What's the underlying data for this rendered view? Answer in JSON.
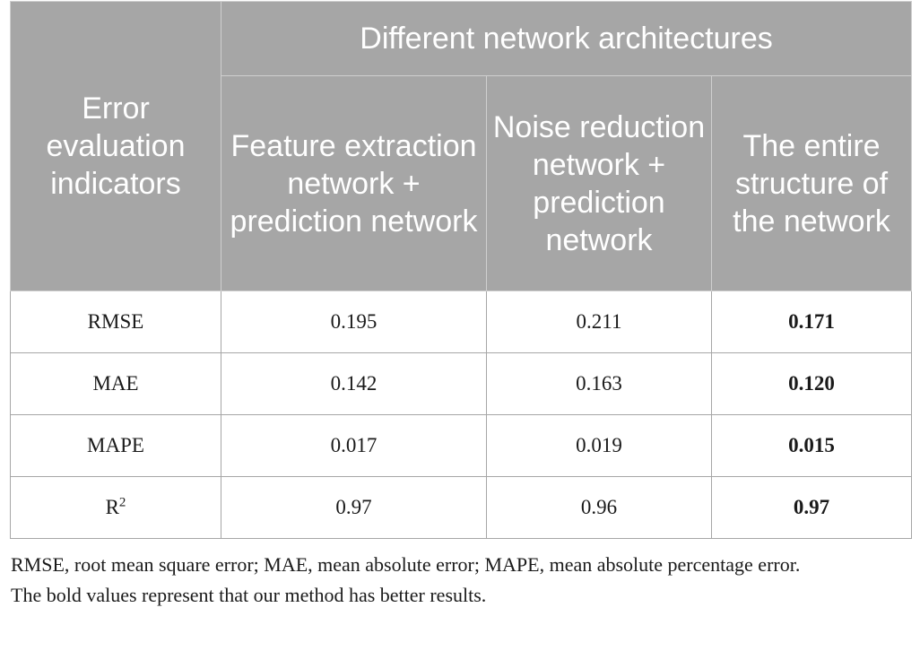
{
  "table": {
    "row_header_label": "Error evaluation indicators",
    "group_header_label": "Different network architectures",
    "columns": [
      "Feature extraction network + prediction network",
      "Noise reduction network + prediction network",
      "The entire structure of the network"
    ],
    "rows": [
      {
        "label": "RMSE",
        "values": [
          "0.195",
          "0.211",
          "0.171"
        ]
      },
      {
        "label": "MAE",
        "values": [
          "0.142",
          "0.163",
          "0.120"
        ]
      },
      {
        "label": "MAPE",
        "values": [
          "0.017",
          "0.019",
          "0.015"
        ]
      },
      {
        "label": "R",
        "label_superscript": "2",
        "values": [
          "0.97",
          "0.96",
          "0.97"
        ]
      }
    ],
    "bold_column_index": 2
  },
  "footnotes": {
    "abbreviations": "RMSE, root mean square error; MAE, mean absolute error; MAPE, mean absolute percentage error.",
    "bold_note": "The bold values represent that our method has better results."
  },
  "colors": {
    "header_background": "#a6a6a6",
    "header_text": "#ffffff",
    "body_text": "#1a1a1a",
    "border": "#a6a6a6"
  }
}
